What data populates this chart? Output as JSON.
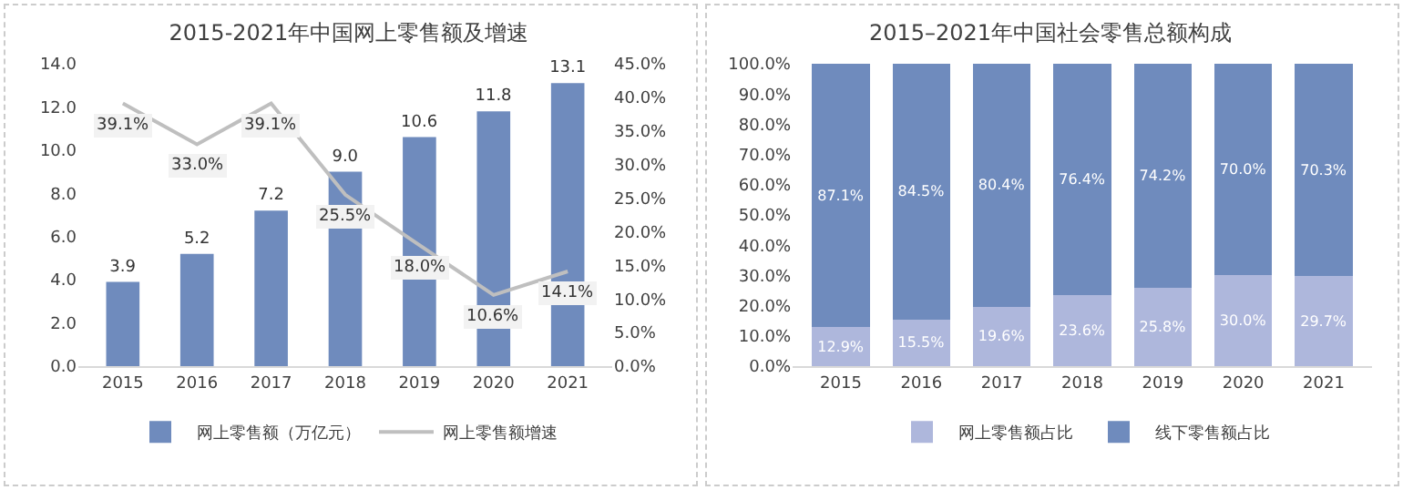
{
  "chart_data": [
    {
      "type": "bar",
      "title": "2015-2021年中国网上零售额及增速",
      "categories": [
        "2015",
        "2016",
        "2017",
        "2018",
        "2019",
        "2020",
        "2021"
      ],
      "series": [
        {
          "name": "网上零售额（万亿元）",
          "color": "#6f8bbd",
          "values": [
            3.9,
            5.2,
            7.2,
            9.0,
            10.6,
            11.8,
            13.1
          ],
          "value_labels": [
            "3.9",
            "5.2",
            "7.2",
            "9.0",
            "10.6",
            "11.8",
            "13.1"
          ]
        },
        {
          "name": "网上零售额增速",
          "type": "line",
          "axis": "y2",
          "color": "#bfbfbf",
          "values": [
            39.1,
            33.0,
            39.1,
            25.5,
            18.0,
            10.6,
            14.1
          ],
          "value_labels": [
            "39.1%",
            "33.0%",
            "39.1%",
            "25.5%",
            "18.0%",
            "10.6%",
            "14.1%"
          ]
        }
      ],
      "ylim": [
        0,
        14
      ],
      "yticks": [
        {
          "value": 0,
          "label": "0.0"
        },
        {
          "value": 2,
          "label": "2.0"
        },
        {
          "value": 4,
          "label": "4.0"
        },
        {
          "value": 6,
          "label": "6.0"
        },
        {
          "value": 8,
          "label": "8.0"
        },
        {
          "value": 10,
          "label": "10.0"
        },
        {
          "value": 12,
          "label": "12.0"
        },
        {
          "value": 14,
          "label": "14.0"
        }
      ],
      "y2lim": [
        0,
        45
      ],
      "y2ticks": [
        {
          "value": 0,
          "label": "0.0%"
        },
        {
          "value": 5,
          "label": "5.0%"
        },
        {
          "value": 10,
          "label": "10.0%"
        },
        {
          "value": 15,
          "label": "15.0%"
        },
        {
          "value": 20,
          "label": "20.0%"
        },
        {
          "value": 25,
          "label": "25.0%"
        },
        {
          "value": 30,
          "label": "30.0%"
        },
        {
          "value": 35,
          "label": "35.0%"
        },
        {
          "value": 40,
          "label": "40.0%"
        },
        {
          "value": 45,
          "label": "45.0%"
        }
      ],
      "legend": "bottom",
      "grid": false,
      "marker": "none"
    },
    {
      "type": "bar",
      "title": "2015–2021年中国社会零售总额构成",
      "stacked": true,
      "categories": [
        "2015",
        "2016",
        "2017",
        "2018",
        "2019",
        "2020",
        "2021"
      ],
      "series": [
        {
          "name": "网上零售额占比",
          "color": "#aeb7dc",
          "values": [
            12.9,
            15.5,
            19.6,
            23.6,
            25.8,
            30.0,
            29.7
          ],
          "value_labels": [
            "12.9%",
            "15.5%",
            "19.6%",
            "23.6%",
            "25.8%",
            "30.0%",
            "29.7%"
          ]
        },
        {
          "name": "线下零售额占比",
          "color": "#6f8bbd",
          "values": [
            87.1,
            84.5,
            80.4,
            76.4,
            74.2,
            70.0,
            70.3
          ],
          "value_labels": [
            "87.1%",
            "84.5%",
            "80.4%",
            "76.4%",
            "74.2%",
            "70.0%",
            "70.3%"
          ]
        }
      ],
      "ylim": [
        0,
        100
      ],
      "yticks": [
        {
          "value": 0,
          "label": "0.0%"
        },
        {
          "value": 10,
          "label": "10.0%"
        },
        {
          "value": 20,
          "label": "20.0%"
        },
        {
          "value": 30,
          "label": "30.0%"
        },
        {
          "value": 40,
          "label": "40.0%"
        },
        {
          "value": 50,
          "label": "50.0%"
        },
        {
          "value": 60,
          "label": "60.0%"
        },
        {
          "value": 70,
          "label": "70.0%"
        },
        {
          "value": 80,
          "label": "80.0%"
        },
        {
          "value": 90,
          "label": "90.0%"
        },
        {
          "value": 100,
          "label": "100.0%"
        }
      ],
      "legend": "bottom",
      "grid": false
    }
  ]
}
